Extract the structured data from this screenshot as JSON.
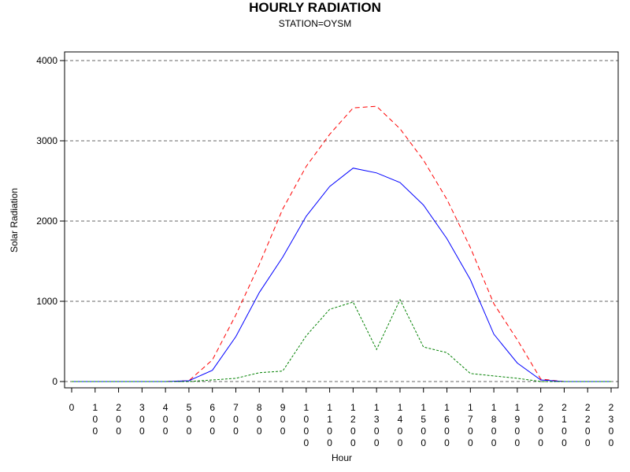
{
  "chart_data": {
    "type": "line",
    "title": "HOURLY RADIATION",
    "subtitle": "STATION=OYSM",
    "xlabel": "Hour",
    "ylabel": "Solar Radiation",
    "xlim": [
      0,
      2300
    ],
    "ylim": [
      0,
      4000
    ],
    "yticks": [
      0,
      1000,
      2000,
      3000,
      4000
    ],
    "xticks": [
      "0",
      "100",
      "200",
      "300",
      "400",
      "500",
      "600",
      "700",
      "800",
      "900",
      "1000",
      "1100",
      "1200",
      "1300",
      "1400",
      "1500",
      "1600",
      "1700",
      "1800",
      "1900",
      "2000",
      "2100",
      "2200",
      "2300"
    ],
    "grid": "horizontal dashed",
    "x": [
      0,
      100,
      200,
      300,
      400,
      500,
      600,
      700,
      800,
      900,
      1000,
      1100,
      1200,
      1300,
      1400,
      1500,
      1600,
      1700,
      1800,
      1900,
      2000,
      2100,
      2200,
      2300
    ],
    "series": [
      {
        "color": "#ff0000",
        "dash": "dashed",
        "values": [
          0,
          0,
          0,
          0,
          0,
          10,
          270,
          830,
          1460,
          2150,
          2680,
          3080,
          3410,
          3430,
          3150,
          2760,
          2270,
          1670,
          970,
          520,
          30,
          0,
          0,
          0
        ]
      },
      {
        "color": "#0000ff",
        "dash": "solid",
        "values": [
          0,
          0,
          0,
          0,
          0,
          10,
          140,
          560,
          1110,
          1550,
          2060,
          2430,
          2660,
          2600,
          2480,
          2200,
          1780,
          1270,
          590,
          230,
          20,
          0,
          0,
          0
        ]
      },
      {
        "color": "#008000",
        "dash": "dotted",
        "values": [
          0,
          0,
          0,
          0,
          0,
          0,
          20,
          40,
          110,
          130,
          570,
          900,
          990,
          400,
          1020,
          430,
          360,
          100,
          70,
          40,
          0,
          0,
          0,
          0
        ]
      }
    ]
  }
}
